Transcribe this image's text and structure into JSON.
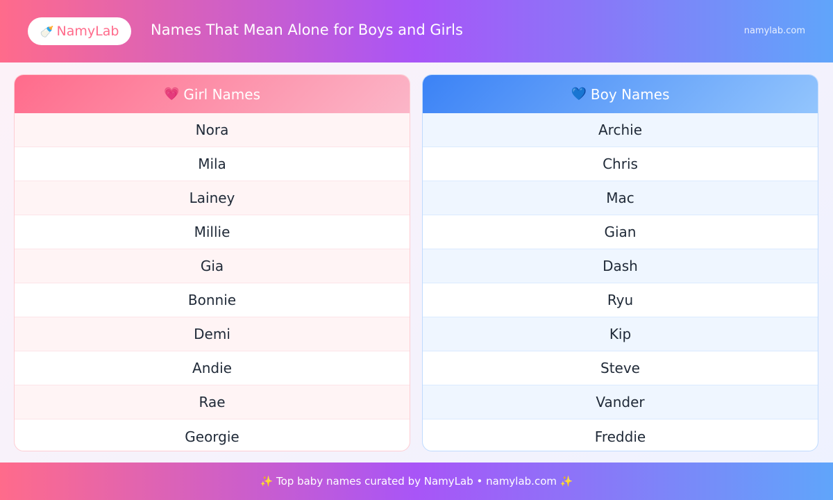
{
  "header": {
    "logo_icon": "baby-bottle-icon",
    "logo_text": "NamyLab",
    "title": "Names That Mean Alone for Boys and Girls",
    "site": "namylab.com"
  },
  "girls": {
    "icon": "heart-icon",
    "title": "Girl Names",
    "names": [
      "Nora",
      "Mila",
      "Lainey",
      "Millie",
      "Gia",
      "Bonnie",
      "Demi",
      "Andie",
      "Rae",
      "Georgie"
    ]
  },
  "boys": {
    "icon": "blue-heart-icon",
    "title": "Boy Names",
    "names": [
      "Archie",
      "Chris",
      "Mac",
      "Gian",
      "Dash",
      "Ryu",
      "Kip",
      "Steve",
      "Vander",
      "Freddie"
    ]
  },
  "footer": {
    "text": "Top baby names curated by NamyLab • namylab.com",
    "icon": "sparkles-icon"
  },
  "colors": {
    "pink": "#ff6b8b",
    "purple": "#a855f7",
    "blue": "#60a5fa"
  }
}
